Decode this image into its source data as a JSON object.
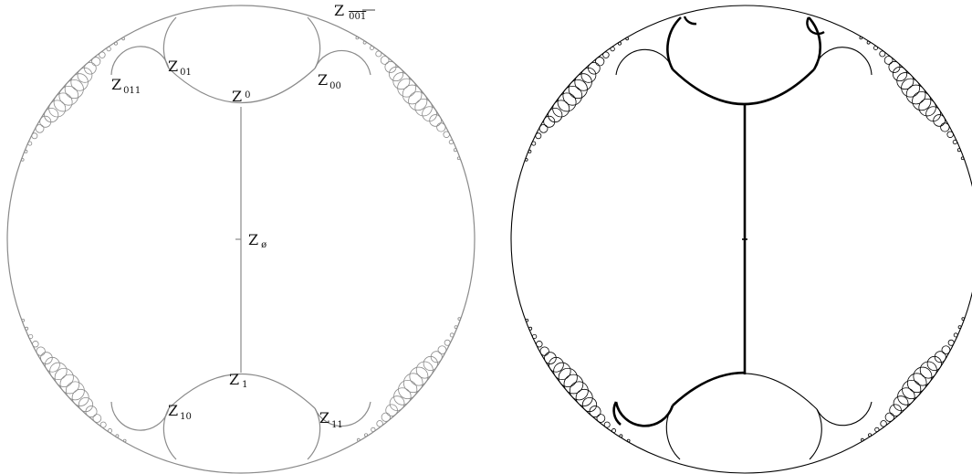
{
  "left_figure": {
    "stroke_color": "#8a8a8a",
    "labels": [
      {
        "id": "z-empty",
        "letter": "Z",
        "sub": "ø"
      },
      {
        "id": "z-0",
        "letter": "Z",
        "sub": "0"
      },
      {
        "id": "z-1",
        "letter": "Z",
        "sub": "1"
      },
      {
        "id": "z-00",
        "letter": "Z",
        "sub": "00"
      },
      {
        "id": "z-01",
        "letter": "Z",
        "sub": "01"
      },
      {
        "id": "z-10",
        "letter": "Z",
        "sub": "10"
      },
      {
        "id": "z-11",
        "letter": "Z",
        "sub": "11"
      },
      {
        "id": "z-011",
        "letter": "Z",
        "sub": "011"
      },
      {
        "id": "z-overline-001",
        "letter": "Z",
        "sub": "001",
        "overline": true
      }
    ]
  },
  "right_figure": {
    "stroke_color": "#000000",
    "highlight_color": "#000000"
  }
}
